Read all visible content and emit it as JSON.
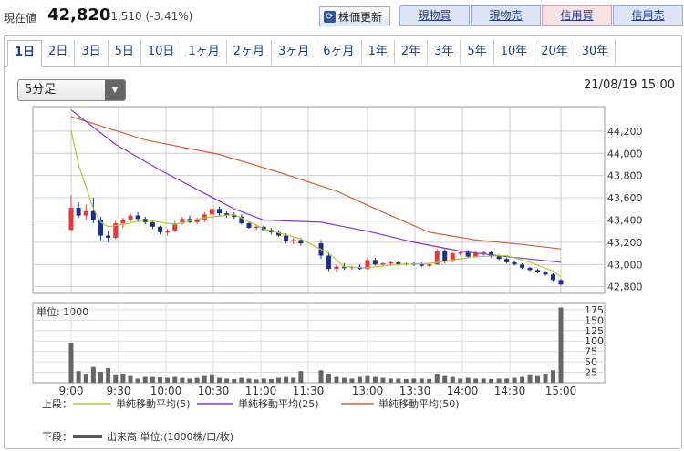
{
  "header": {
    "label": "現在値",
    "price": "42,820",
    "change": "-1,510 (-3.41%)",
    "refresh_label": "株価更新",
    "refresh_icon": "refresh-icon",
    "buttons": [
      {
        "label": "現物買",
        "color": "blue"
      },
      {
        "label": "現物売",
        "color": "blue"
      },
      {
        "label": "信用買",
        "color": "red"
      },
      {
        "label": "信用売",
        "color": "blue"
      }
    ]
  },
  "tabs": [
    "1日",
    "2日",
    "3日",
    "5日",
    "10日",
    "1ヶ月",
    "2ヶ月",
    "3ヶ月",
    "6ヶ月",
    "1年",
    "2年",
    "3年",
    "5年",
    "10年",
    "20年",
    "30年"
  ],
  "active_tab": "1日",
  "interval_select": {
    "value": "5分足",
    "arrow_icon": "triangle-down-icon"
  },
  "datetime": "21/08/19 15:00",
  "colors": {
    "up": "#e03a3e",
    "down": "#1a2f8f",
    "ma5": "#aacc33",
    "ma25": "#8833cc",
    "ma50": "#d4603a",
    "volume": "#666666"
  },
  "chart_data": {
    "type": "candlestick",
    "x_ticks": [
      "9:00",
      "9:30",
      "10:00",
      "10:30",
      "11:00",
      "11:30",
      "13:00",
      "13:30",
      "14:00",
      "14:30",
      "15:00"
    ],
    "price_axis": {
      "ticks": [
        "44,200",
        "44,000",
        "43,800",
        "43,600",
        "43,400",
        "43,200",
        "43,000",
        "42,800"
      ],
      "ylim": [
        42740,
        44420
      ]
    },
    "volume_axis": {
      "unit_label": "単位: 1000",
      "ticks": [
        "175",
        "150",
        "125",
        "100",
        "75",
        "50",
        "25"
      ],
      "ylim": [
        0,
        190
      ]
    },
    "morning": [
      {
        "o": 43310,
        "h": 43620,
        "l": 43310,
        "c": 43510,
        "v": 95
      },
      {
        "o": 43510,
        "h": 43560,
        "l": 43420,
        "c": 43440,
        "v": 28
      },
      {
        "o": 43440,
        "h": 43540,
        "l": 43400,
        "c": 43480,
        "v": 20
      },
      {
        "o": 43480,
        "h": 43600,
        "l": 43370,
        "c": 43400,
        "v": 38
      },
      {
        "o": 43400,
        "h": 43430,
        "l": 43220,
        "c": 43260,
        "v": 26
      },
      {
        "o": 43260,
        "h": 43300,
        "l": 43200,
        "c": 43240,
        "v": 35
      },
      {
        "o": 43240,
        "h": 43390,
        "l": 43230,
        "c": 43370,
        "v": 18
      },
      {
        "o": 43370,
        "h": 43420,
        "l": 43330,
        "c": 43400,
        "v": 20
      },
      {
        "o": 43400,
        "h": 43460,
        "l": 43380,
        "c": 43440,
        "v": 16
      },
      {
        "o": 43440,
        "h": 43470,
        "l": 43390,
        "c": 43410,
        "v": 10
      },
      {
        "o": 43410,
        "h": 43430,
        "l": 43360,
        "c": 43380,
        "v": 14
      },
      {
        "o": 43380,
        "h": 43400,
        "l": 43320,
        "c": 43340,
        "v": 14
      },
      {
        "o": 43340,
        "h": 43350,
        "l": 43270,
        "c": 43290,
        "v": 13
      },
      {
        "o": 43290,
        "h": 43320,
        "l": 43260,
        "c": 43300,
        "v": 12
      },
      {
        "o": 43300,
        "h": 43390,
        "l": 43290,
        "c": 43370,
        "v": 14
      },
      {
        "o": 43370,
        "h": 43430,
        "l": 43360,
        "c": 43410,
        "v": 12
      },
      {
        "o": 43410,
        "h": 43440,
        "l": 43370,
        "c": 43380,
        "v": 10
      },
      {
        "o": 43380,
        "h": 43420,
        "l": 43360,
        "c": 43400,
        "v": 12
      },
      {
        "o": 43400,
        "h": 43470,
        "l": 43380,
        "c": 43450,
        "v": 16
      },
      {
        "o": 43450,
        "h": 43520,
        "l": 43440,
        "c": 43500,
        "v": 18
      },
      {
        "o": 43500,
        "h": 43520,
        "l": 43440,
        "c": 43460,
        "v": 12
      },
      {
        "o": 43460,
        "h": 43480,
        "l": 43420,
        "c": 43440,
        "v": 10
      },
      {
        "o": 43440,
        "h": 43470,
        "l": 43410,
        "c": 43430,
        "v": 9
      },
      {
        "o": 43430,
        "h": 43450,
        "l": 43360,
        "c": 43370,
        "v": 12
      },
      {
        "o": 43370,
        "h": 43380,
        "l": 43320,
        "c": 43330,
        "v": 10
      },
      {
        "o": 43330,
        "h": 43360,
        "l": 43310,
        "c": 43340,
        "v": 8
      },
      {
        "o": 43340,
        "h": 43360,
        "l": 43300,
        "c": 43310,
        "v": 10
      },
      {
        "o": 43310,
        "h": 43330,
        "l": 43270,
        "c": 43290,
        "v": 9
      },
      {
        "o": 43290,
        "h": 43310,
        "l": 43250,
        "c": 43260,
        "v": 12
      },
      {
        "o": 43260,
        "h": 43280,
        "l": 43190,
        "c": 43210,
        "v": 14
      },
      {
        "o": 43210,
        "h": 43240,
        "l": 43180,
        "c": 43220,
        "v": 12
      },
      {
        "o": 43220,
        "h": 43240,
        "l": 43170,
        "c": 43190,
        "v": 28
      }
    ],
    "afternoon": [
      {
        "o": 43190,
        "h": 43220,
        "l": 43050,
        "c": 43080,
        "v": 30
      },
      {
        "o": 43080,
        "h": 43110,
        "l": 42940,
        "c": 42960,
        "v": 22
      },
      {
        "o": 42960,
        "h": 43000,
        "l": 42930,
        "c": 42980,
        "v": 14
      },
      {
        "o": 42980,
        "h": 43010,
        "l": 42950,
        "c": 42970,
        "v": 12
      },
      {
        "o": 42970,
        "h": 42990,
        "l": 42950,
        "c": 42980,
        "v": 10
      },
      {
        "o": 42980,
        "h": 43000,
        "l": 42950,
        "c": 42960,
        "v": 14
      },
      {
        "o": 42960,
        "h": 43060,
        "l": 42950,
        "c": 43040,
        "v": 16
      },
      {
        "o": 43040,
        "h": 43060,
        "l": 42990,
        "c": 43000,
        "v": 14
      },
      {
        "o": 43000,
        "h": 43020,
        "l": 42990,
        "c": 43010,
        "v": 12
      },
      {
        "o": 43010,
        "h": 43030,
        "l": 42990,
        "c": 43020,
        "v": 10
      },
      {
        "o": 43020,
        "h": 43030,
        "l": 42990,
        "c": 43000,
        "v": 10
      },
      {
        "o": 43000,
        "h": 43020,
        "l": 42990,
        "c": 43010,
        "v": 9
      },
      {
        "o": 43010,
        "h": 43020,
        "l": 42990,
        "c": 43000,
        "v": 10
      },
      {
        "o": 43000,
        "h": 43020,
        "l": 42980,
        "c": 42990,
        "v": 10
      },
      {
        "o": 42990,
        "h": 43010,
        "l": 42980,
        "c": 43000,
        "v": 9
      },
      {
        "o": 43000,
        "h": 43140,
        "l": 43000,
        "c": 43120,
        "v": 20
      },
      {
        "o": 43120,
        "h": 43140,
        "l": 43010,
        "c": 43030,
        "v": 16
      },
      {
        "o": 43030,
        "h": 43110,
        "l": 43020,
        "c": 43100,
        "v": 14
      },
      {
        "o": 43100,
        "h": 43120,
        "l": 43080,
        "c": 43110,
        "v": 10
      },
      {
        "o": 43110,
        "h": 43130,
        "l": 43060,
        "c": 43070,
        "v": 12
      },
      {
        "o": 43070,
        "h": 43120,
        "l": 43060,
        "c": 43100,
        "v": 10
      },
      {
        "o": 43100,
        "h": 43120,
        "l": 43080,
        "c": 43110,
        "v": 10
      },
      {
        "o": 43110,
        "h": 43120,
        "l": 43060,
        "c": 43080,
        "v": 9
      },
      {
        "o": 43080,
        "h": 43090,
        "l": 43040,
        "c": 43050,
        "v": 10
      },
      {
        "o": 43050,
        "h": 43060,
        "l": 43010,
        "c": 43020,
        "v": 10
      },
      {
        "o": 43020,
        "h": 43040,
        "l": 42990,
        "c": 43000,
        "v": 12
      },
      {
        "o": 43000,
        "h": 43010,
        "l": 42960,
        "c": 42970,
        "v": 14
      },
      {
        "o": 42970,
        "h": 42980,
        "l": 42940,
        "c": 42950,
        "v": 18
      },
      {
        "o": 42950,
        "h": 42960,
        "l": 42920,
        "c": 42930,
        "v": 16
      },
      {
        "o": 42930,
        "h": 42940,
        "l": 42900,
        "c": 42910,
        "v": 22
      },
      {
        "o": 42910,
        "h": 42920,
        "l": 42850,
        "c": 42860,
        "v": 30
      },
      {
        "o": 42860,
        "h": 42870,
        "l": 42810,
        "c": 42820,
        "v": 180
      }
    ],
    "ma5": [
      [
        0,
        44200
      ],
      [
        1,
        43900
      ],
      [
        2,
        43700
      ],
      [
        3,
        43500
      ],
      [
        4,
        43380
      ],
      [
        5,
        43340
      ],
      [
        7,
        43360
      ],
      [
        10,
        43400
      ],
      [
        14,
        43360
      ],
      [
        18,
        43420
      ],
      [
        22,
        43450
      ],
      [
        26,
        43320
      ],
      [
        31,
        43230
      ],
      [
        33,
        43100
      ],
      [
        35,
        42980
      ],
      [
        38,
        42970
      ],
      [
        42,
        43000
      ],
      [
        46,
        43010
      ],
      [
        48,
        43030
      ],
      [
        52,
        43070
      ],
      [
        56,
        43080
      ],
      [
        59,
        43020
      ],
      [
        62,
        42940
      ],
      [
        63,
        42890
      ]
    ],
    "ma25": [
      [
        0,
        44390
      ],
      [
        6,
        44080
      ],
      [
        12,
        43850
      ],
      [
        18,
        43640
      ],
      [
        22,
        43500
      ],
      [
        26,
        43400
      ],
      [
        32,
        43380
      ],
      [
        38,
        43300
      ],
      [
        44,
        43200
      ],
      [
        50,
        43120
      ],
      [
        56,
        43070
      ],
      [
        63,
        43020
      ]
    ],
    "ma50": [
      [
        0,
        44330
      ],
      [
        10,
        44120
      ],
      [
        20,
        43990
      ],
      [
        28,
        43830
      ],
      [
        34,
        43660
      ],
      [
        40,
        43470
      ],
      [
        46,
        43290
      ],
      [
        52,
        43220
      ],
      [
        58,
        43180
      ],
      [
        63,
        43140
      ]
    ],
    "legend": {
      "upper_label": "上段：",
      "lower_label": "下段：",
      "ma5_label": "単純移動平均(5)",
      "ma25_label": "単純移動平均(25)",
      "ma50_label": "単純移動平均(50)",
      "volume_label": "出来高 単位:(1000株/口/枚)"
    }
  }
}
